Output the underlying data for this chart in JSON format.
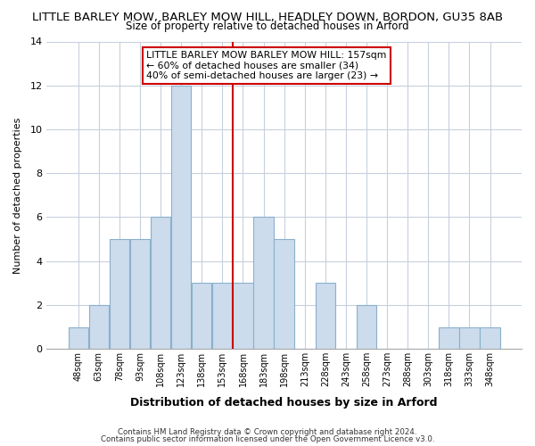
{
  "title": "LITTLE BARLEY MOW, BARLEY MOW HILL, HEADLEY DOWN, BORDON, GU35 8AB",
  "subtitle": "Size of property relative to detached houses in Arford",
  "xlabel": "Distribution of detached houses by size in Arford",
  "ylabel": "Number of detached properties",
  "bin_labels": [
    "48sqm",
    "63sqm",
    "78sqm",
    "93sqm",
    "108sqm",
    "123sqm",
    "138sqm",
    "153sqm",
    "168sqm",
    "183sqm",
    "198sqm",
    "213sqm",
    "228sqm",
    "243sqm",
    "258sqm",
    "273sqm",
    "288sqm",
    "303sqm",
    "318sqm",
    "333sqm",
    "348sqm"
  ],
  "bin_counts": [
    1,
    2,
    5,
    5,
    6,
    12,
    3,
    3,
    3,
    6,
    5,
    0,
    3,
    0,
    2,
    0,
    0,
    0,
    1,
    1,
    1
  ],
  "bar_color": "#ccdcec",
  "bar_edge_color": "#8ab0cc",
  "vline_color": "#cc0000",
  "ylim": [
    0,
    14
  ],
  "yticks": [
    0,
    2,
    4,
    6,
    8,
    10,
    12,
    14
  ],
  "annotation_title": "LITTLE BARLEY MOW BARLEY MOW HILL: 157sqm",
  "annotation_line1": "← 60% of detached houses are smaller (34)",
  "annotation_line2": "40% of semi-detached houses are larger (23) →",
  "annotation_box_facecolor": "#ffffff",
  "annotation_box_edgecolor": "#cc0000",
  "footer1": "Contains HM Land Registry data © Crown copyright and database right 2024.",
  "footer2": "Contains public sector information licensed under the Open Government Licence v3.0.",
  "background_color": "#ffffff",
  "plot_bg_color": "#ffffff",
  "grid_color": "#c8d0dc",
  "title_fontsize": 9.5,
  "subtitle_fontsize": 8.5,
  "vline_bin_index": 7.5
}
